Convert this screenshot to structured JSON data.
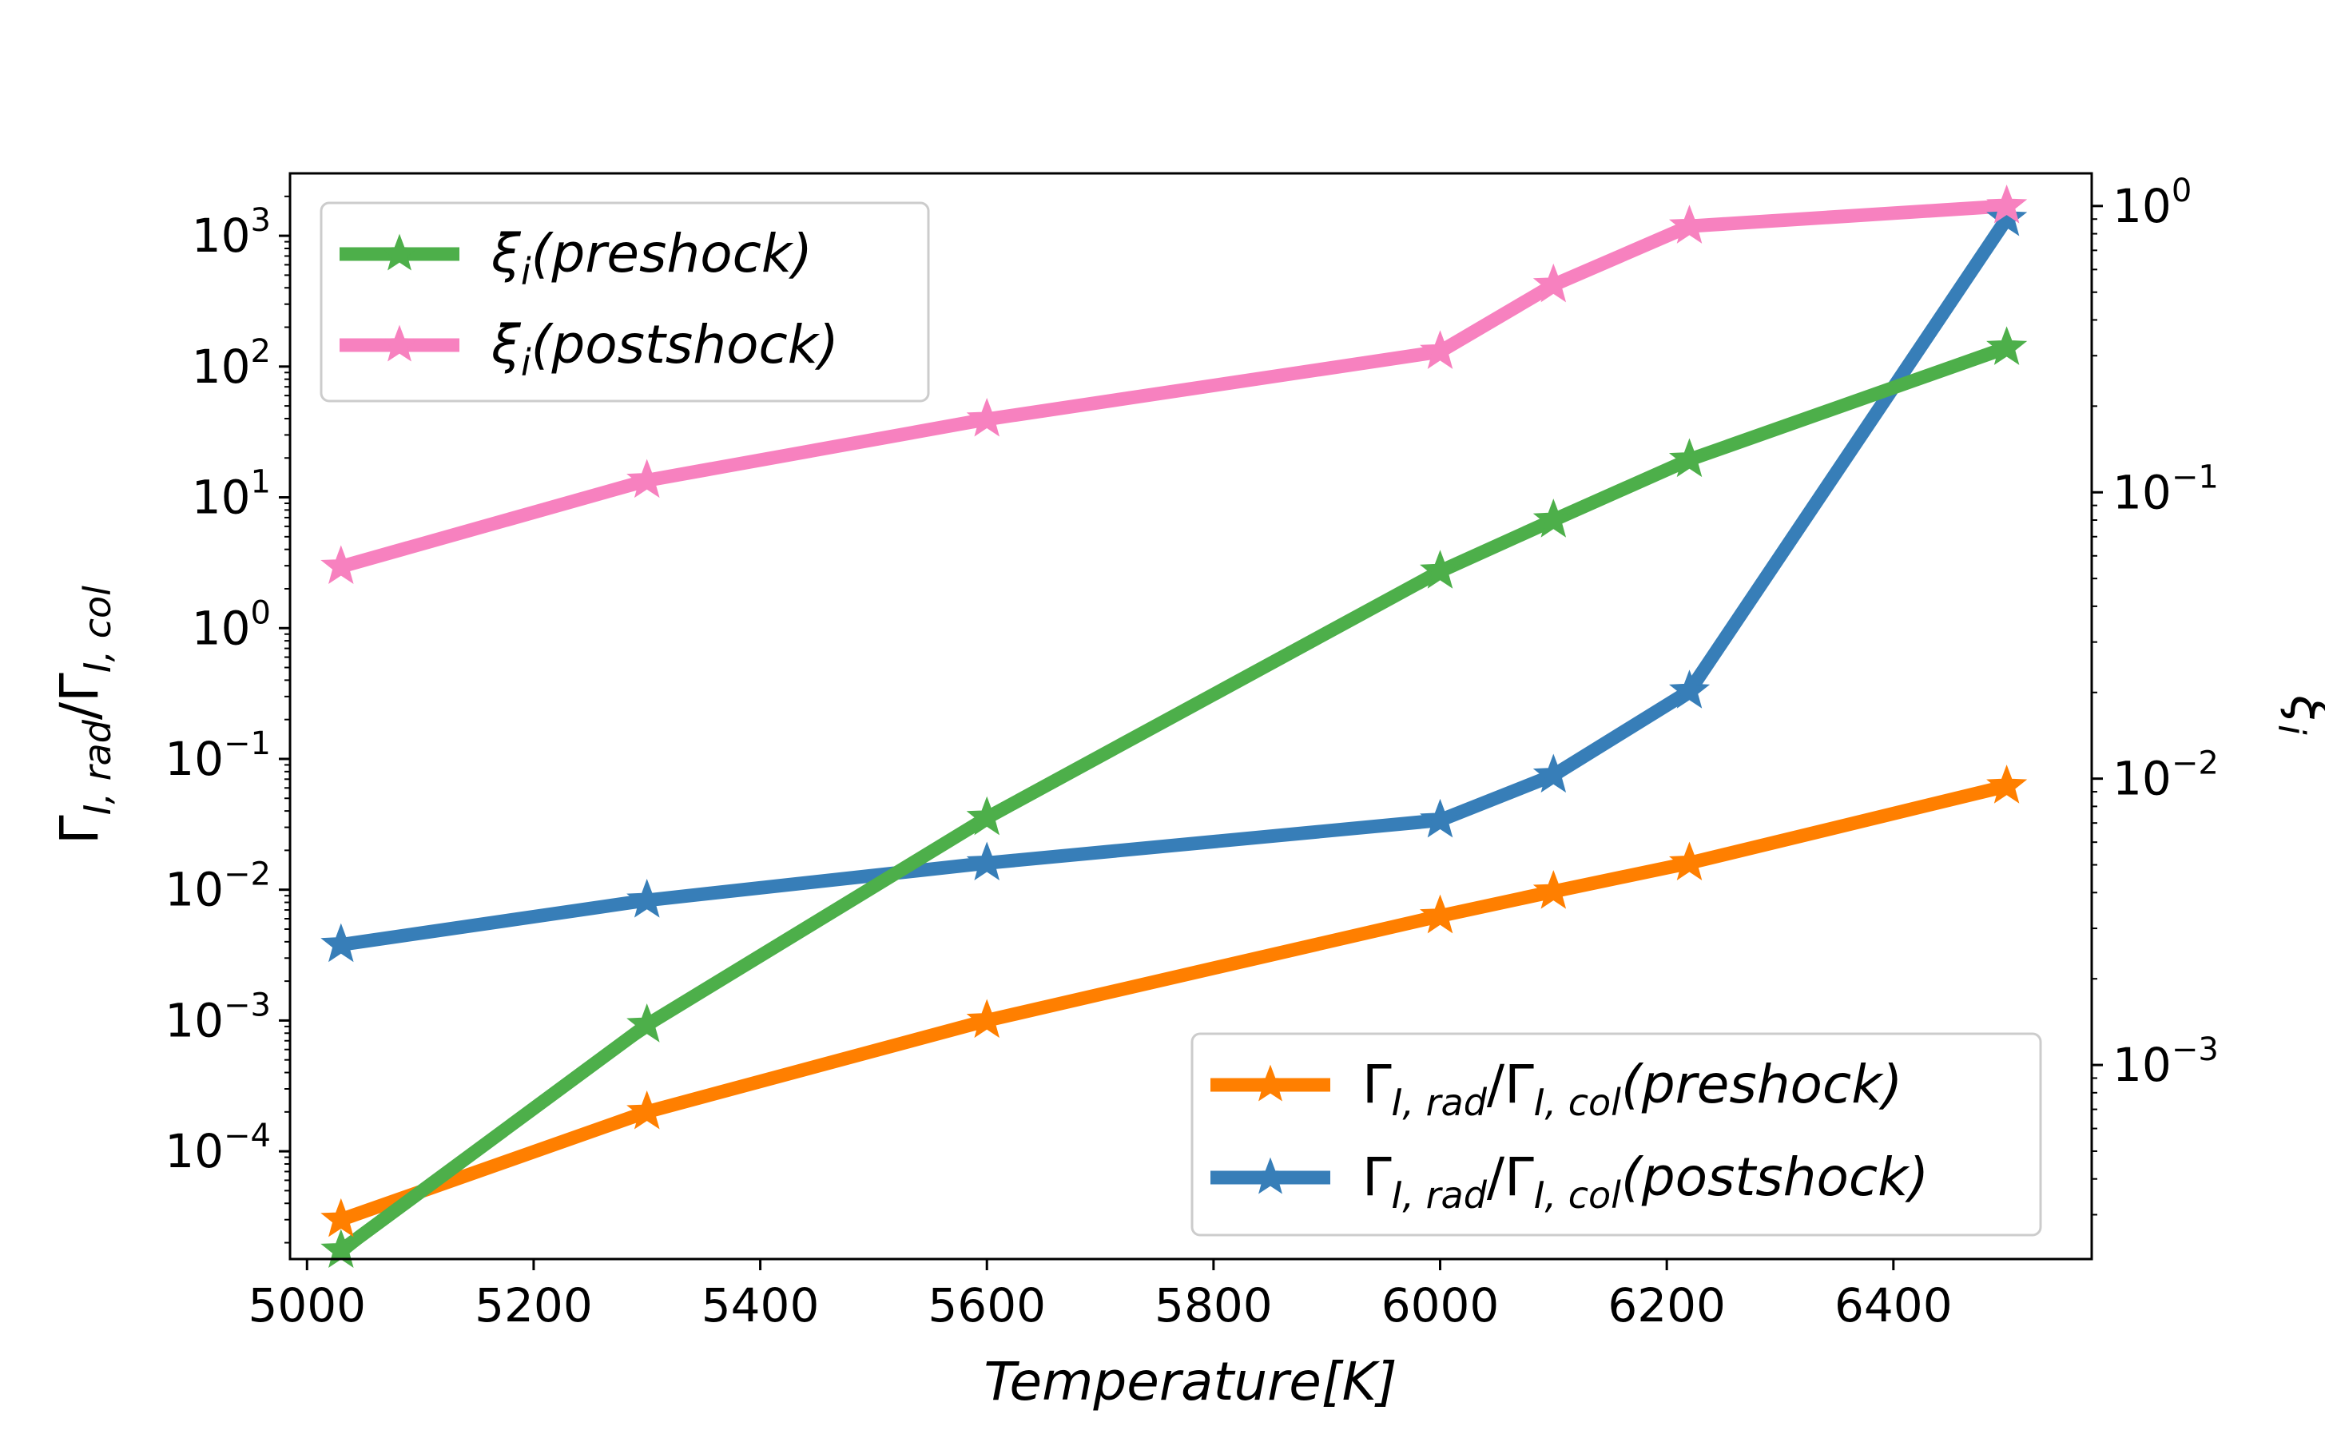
{
  "chart_data": {
    "type": "line",
    "title": "",
    "xlabel": "Temperature[K]",
    "ylabel_left": "Γ_{I,rad}/Γ_{I,col}",
    "ylabel_right": "ξ_i",
    "x": [
      5030,
      5300,
      5600,
      6000,
      6100,
      6220,
      6500
    ],
    "xlim": [
      4985,
      6575
    ],
    "x_ticks": [
      5000,
      5200,
      5400,
      5600,
      5800,
      6000,
      6200,
      6400
    ],
    "left_axis": {
      "scale": "log",
      "ylim": [
        1.5e-05,
        3000
      ],
      "ticks": [
        {
          "value": 0.0001,
          "base": "10",
          "exp": "−4"
        },
        {
          "value": 0.001,
          "base": "10",
          "exp": "−3"
        },
        {
          "value": 0.01,
          "base": "10",
          "exp": "−2"
        },
        {
          "value": 0.1,
          "base": "10",
          "exp": "−1"
        },
        {
          "value": 1,
          "base": "10",
          "exp": "0"
        },
        {
          "value": 10,
          "base": "10",
          "exp": "1"
        },
        {
          "value": 100,
          "base": "10",
          "exp": "2"
        },
        {
          "value": 1000,
          "base": "10",
          "exp": "3"
        }
      ]
    },
    "right_axis": {
      "scale": "log",
      "ylim": [
        0.00021,
        1.3
      ],
      "ticks": [
        {
          "value": 0.001,
          "base": "10",
          "exp": "−3"
        },
        {
          "value": 0.01,
          "base": "10",
          "exp": "−2"
        },
        {
          "value": 0.1,
          "base": "10",
          "exp": "−1"
        },
        {
          "value": 1,
          "base": "10",
          "exp": "0"
        }
      ]
    },
    "series": [
      {
        "key": "xi_pre",
        "axis": "right",
        "color": "#4daf4a",
        "name_main": "ξ",
        "name_sub": "i",
        "name_tail": "(preshock)",
        "values": [
          0.000225,
          0.00138,
          0.0073,
          0.053,
          0.08,
          0.13,
          0.32
        ]
      },
      {
        "key": "xi_post",
        "axis": "right",
        "color": "#f781bf",
        "name_main": "ξ",
        "name_sub": "i",
        "name_tail": "(postshock)",
        "values": [
          0.055,
          0.11,
          0.18,
          0.31,
          0.53,
          0.85,
          1.0
        ]
      },
      {
        "key": "gam_pre",
        "axis": "left",
        "color": "#ff7f00",
        "name_main": "Γ",
        "name_sub": "I, rad",
        "name_mid": "/Γ",
        "name_sub2": "I, col",
        "name_tail": "(preshock)",
        "values": [
          3e-05,
          0.0002,
          0.001,
          0.0063,
          0.0097,
          0.016,
          0.062
        ]
      },
      {
        "key": "gam_post",
        "axis": "left",
        "color": "#377eb8",
        "name_main": "Γ",
        "name_sub": "I, rad",
        "name_mid": "/Γ",
        "name_sub2": "I, col",
        "name_tail": "(postshock)",
        "values": [
          0.0038,
          0.0083,
          0.016,
          0.034,
          0.075,
          0.33,
          1350
        ]
      }
    ],
    "legends": [
      {
        "placement": "upper-left",
        "series": [
          "xi_pre",
          "xi_post"
        ]
      },
      {
        "placement": "lower-right",
        "series": [
          "gam_pre",
          "gam_post"
        ]
      }
    ],
    "marker": "star",
    "grid": false
  }
}
